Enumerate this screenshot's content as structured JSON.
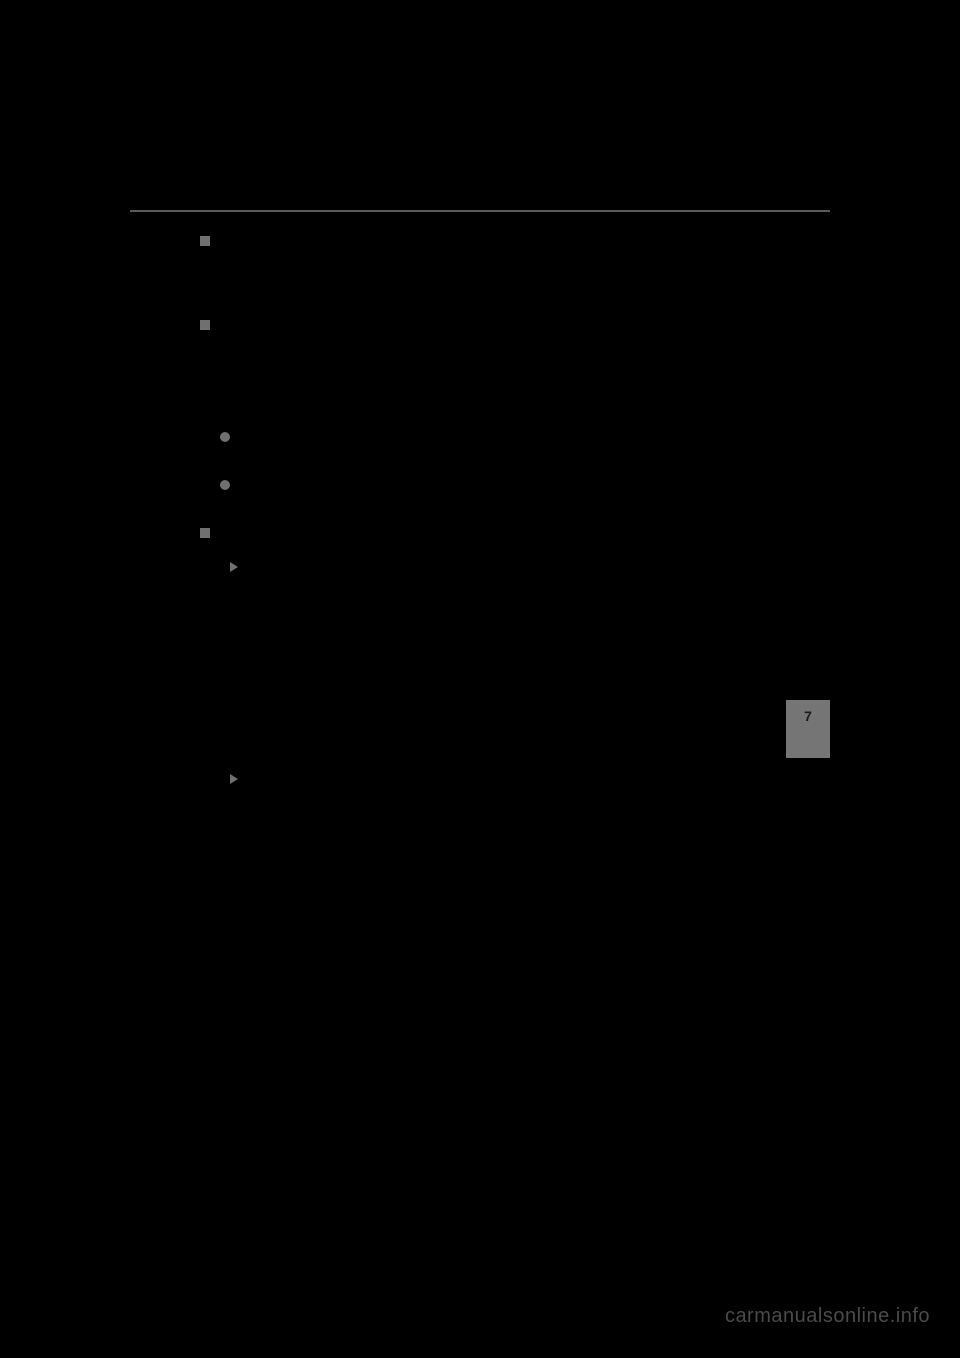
{
  "page": {
    "background_color": "#000000",
    "text_color": "#808080",
    "hr_color": "#5a5a5a",
    "bullet_color": "#707070",
    "tab_bg_color": "#757575",
    "tab_text_color": "#1a1a1a",
    "watermark_color": "#4a4a4a"
  },
  "tab": {
    "number": "7"
  },
  "watermark": {
    "text": "carmanualsonline.info"
  },
  "sections": {
    "s1": "",
    "s2": "",
    "s3": "",
    "s4": "",
    "s5": "",
    "s6": "",
    "s7": ""
  }
}
